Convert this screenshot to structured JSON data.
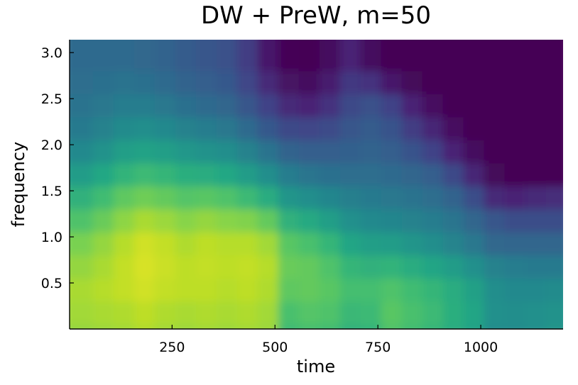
{
  "chart_data": {
    "type": "heatmap",
    "title": "DW + PreW, m=50",
    "xlabel": "time",
    "ylabel": "frequency",
    "xlim": [
      1,
      1200
    ],
    "ylim": [
      0.0,
      3.14
    ],
    "xticks": [
      250,
      500,
      750,
      1000
    ],
    "xtick_labels": [
      "250",
      "500",
      "750",
      "1000"
    ],
    "yticks": [
      0.5,
      1.0,
      1.5,
      2.0,
      2.5,
      3.0
    ],
    "ytick_labels": [
      "0.5",
      "1.0",
      "1.5",
      "2.0",
      "2.5",
      "3.0"
    ],
    "colormap": "viridis",
    "colorbar": false,
    "grid": false,
    "value_scale": "normalized 0-1 (no colorbar shown)",
    "x": [
      50,
      100,
      150,
      200,
      250,
      300,
      350,
      400,
      450,
      500,
      550,
      600,
      650,
      700,
      750,
      800,
      850,
      900,
      950,
      1000,
      1050,
      1100,
      1150,
      1200
    ],
    "y": [
      0.0,
      0.25,
      0.5,
      0.75,
      1.0,
      1.25,
      1.5,
      1.75,
      2.0,
      2.25,
      2.5,
      2.75,
      3.0,
      3.14
    ],
    "z": [
      [
        0.84,
        0.85,
        0.86,
        0.88,
        0.86,
        0.85,
        0.86,
        0.85,
        0.86,
        0.85,
        0.68,
        0.7,
        0.69,
        0.64,
        0.65,
        0.72,
        0.69,
        0.66,
        0.62,
        0.58,
        0.48,
        0.48,
        0.5,
        0.52
      ],
      [
        0.86,
        0.87,
        0.88,
        0.9,
        0.88,
        0.87,
        0.88,
        0.87,
        0.88,
        0.86,
        0.71,
        0.73,
        0.72,
        0.67,
        0.68,
        0.74,
        0.71,
        0.68,
        0.63,
        0.59,
        0.5,
        0.49,
        0.5,
        0.51
      ],
      [
        0.87,
        0.89,
        0.91,
        0.93,
        0.91,
        0.9,
        0.9,
        0.89,
        0.9,
        0.88,
        0.75,
        0.76,
        0.74,
        0.7,
        0.7,
        0.72,
        0.69,
        0.66,
        0.62,
        0.57,
        0.49,
        0.47,
        0.47,
        0.48
      ],
      [
        0.84,
        0.87,
        0.91,
        0.94,
        0.92,
        0.9,
        0.91,
        0.9,
        0.91,
        0.89,
        0.77,
        0.76,
        0.72,
        0.66,
        0.64,
        0.65,
        0.62,
        0.59,
        0.55,
        0.5,
        0.44,
        0.42,
        0.41,
        0.41
      ],
      [
        0.8,
        0.84,
        0.89,
        0.93,
        0.91,
        0.88,
        0.9,
        0.89,
        0.89,
        0.86,
        0.74,
        0.71,
        0.66,
        0.59,
        0.56,
        0.55,
        0.52,
        0.49,
        0.45,
        0.4,
        0.34,
        0.33,
        0.33,
        0.33
      ],
      [
        0.72,
        0.77,
        0.83,
        0.87,
        0.85,
        0.82,
        0.84,
        0.82,
        0.81,
        0.76,
        0.64,
        0.61,
        0.56,
        0.5,
        0.47,
        0.46,
        0.44,
        0.42,
        0.39,
        0.33,
        0.27,
        0.24,
        0.24,
        0.24
      ],
      [
        0.64,
        0.69,
        0.75,
        0.78,
        0.76,
        0.73,
        0.74,
        0.72,
        0.68,
        0.62,
        0.52,
        0.49,
        0.46,
        0.43,
        0.41,
        0.4,
        0.38,
        0.36,
        0.32,
        0.24,
        0.12,
        0.1,
        0.12,
        0.13
      ],
      [
        0.55,
        0.6,
        0.65,
        0.68,
        0.66,
        0.63,
        0.62,
        0.6,
        0.55,
        0.49,
        0.42,
        0.39,
        0.37,
        0.36,
        0.36,
        0.35,
        0.33,
        0.3,
        0.22,
        0.11,
        0.02,
        0.0,
        0.0,
        0.0
      ],
      [
        0.47,
        0.51,
        0.56,
        0.58,
        0.56,
        0.53,
        0.51,
        0.49,
        0.44,
        0.38,
        0.32,
        0.3,
        0.3,
        0.31,
        0.32,
        0.3,
        0.26,
        0.2,
        0.1,
        0.03,
        0.0,
        0.0,
        0.0,
        0.0
      ],
      [
        0.41,
        0.44,
        0.48,
        0.49,
        0.47,
        0.44,
        0.42,
        0.4,
        0.35,
        0.28,
        0.22,
        0.21,
        0.23,
        0.27,
        0.29,
        0.26,
        0.18,
        0.11,
        0.04,
        0.0,
        0.0,
        0.0,
        0.0,
        0.0
      ],
      [
        0.38,
        0.4,
        0.42,
        0.42,
        0.4,
        0.37,
        0.35,
        0.33,
        0.27,
        0.2,
        0.12,
        0.1,
        0.15,
        0.22,
        0.25,
        0.2,
        0.1,
        0.04,
        0.0,
        0.0,
        0.0,
        0.0,
        0.0,
        0.0
      ],
      [
        0.36,
        0.37,
        0.38,
        0.37,
        0.35,
        0.32,
        0.3,
        0.28,
        0.21,
        0.12,
        0.05,
        0.03,
        0.08,
        0.17,
        0.15,
        0.07,
        0.02,
        0.0,
        0.0,
        0.0,
        0.0,
        0.0,
        0.0,
        0.0
      ],
      [
        0.35,
        0.35,
        0.35,
        0.34,
        0.32,
        0.29,
        0.27,
        0.25,
        0.18,
        0.07,
        0.01,
        0.0,
        0.03,
        0.1,
        0.03,
        0.0,
        0.0,
        0.0,
        0.0,
        0.0,
        0.0,
        0.0,
        0.0,
        0.0
      ],
      [
        0.35,
        0.35,
        0.35,
        0.34,
        0.32,
        0.29,
        0.27,
        0.25,
        0.18,
        0.07,
        0.01,
        0.0,
        0.03,
        0.1,
        0.03,
        0.0,
        0.0,
        0.0,
        0.0,
        0.0,
        0.0,
        0.0,
        0.0,
        0.0
      ]
    ]
  }
}
